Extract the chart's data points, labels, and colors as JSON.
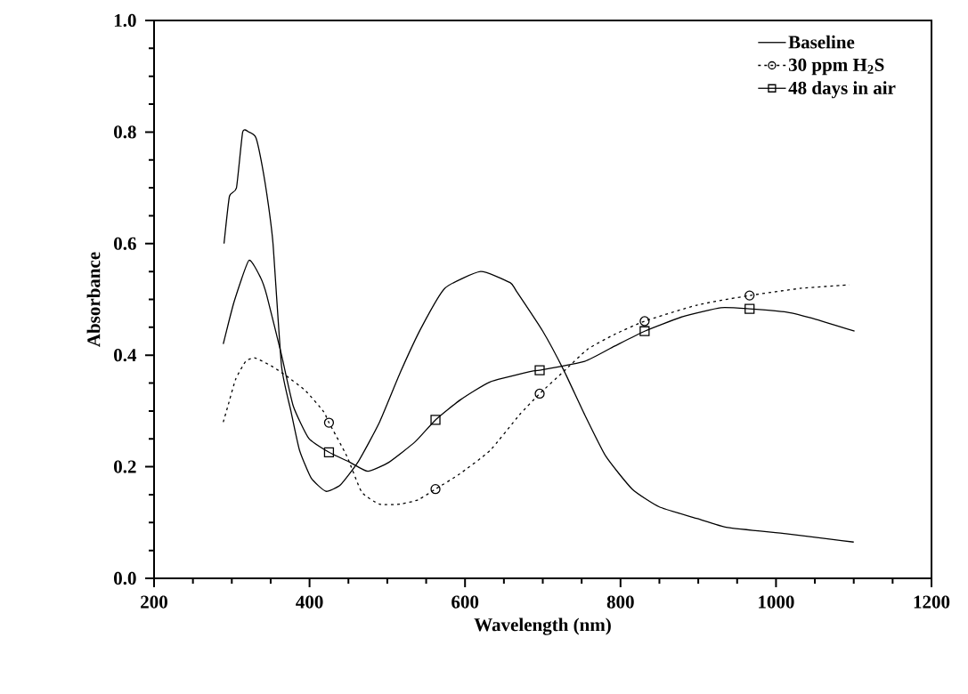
{
  "chart_data": {
    "type": "line",
    "xlabel": "Wavelength  (nm)",
    "ylabel": "Absorbance",
    "xlim": [
      200,
      1200
    ],
    "ylim": [
      0,
      1
    ],
    "xticks": [
      200,
      {
        "value": 250,
        "label": null
      },
      {
        "value": 300,
        "label": null
      },
      {
        "value": 350,
        "label": null
      },
      400,
      {
        "value": 450,
        "label": null
      },
      {
        "value": 500,
        "label": null
      },
      {
        "value": 550,
        "label": null
      },
      600,
      {
        "value": 650,
        "label": null
      },
      {
        "value": 700,
        "label": null
      },
      {
        "value": 750,
        "label": null
      },
      800,
      {
        "value": 850,
        "label": null
      },
      {
        "value": 900,
        "label": null
      },
      {
        "value": 950,
        "label": null
      },
      1000,
      {
        "value": 1050,
        "label": null
      },
      {
        "value": 1100,
        "label": null
      },
      {
        "value": 1150,
        "label": null
      },
      1200
    ],
    "yticks": [
      {
        "value": 0,
        "label": "0.0"
      },
      {
        "value": 0.05,
        "label": null
      },
      {
        "value": 0.1,
        "label": null
      },
      {
        "value": 0.15,
        "label": null
      },
      0.2,
      {
        "value": 0.25,
        "label": null
      },
      {
        "value": 0.3,
        "label": null
      },
      {
        "value": 0.35,
        "label": null
      },
      0.4,
      {
        "value": 0.45,
        "label": null
      },
      {
        "value": 0.5,
        "label": null
      },
      {
        "value": 0.55,
        "label": null
      },
      0.6,
      {
        "value": 0.65,
        "label": null
      },
      {
        "value": 0.7,
        "label": null
      },
      {
        "value": 0.75,
        "label": null
      },
      0.8,
      {
        "value": 0.85,
        "label": null
      },
      {
        "value": 0.9,
        "label": null
      },
      {
        "value": 0.95,
        "label": null
      },
      {
        "value": 1,
        "label": "1.0"
      }
    ],
    "grid": false,
    "legend": "top right",
    "series": [
      {
        "name": "Baseline",
        "color": "#000000",
        "line_style": "solid",
        "x": [
          290,
          297,
          306,
          314,
          322,
          331,
          339,
          347,
          353,
          364,
          376,
          387,
          402,
          421,
          440,
          463,
          490,
          517,
          544,
          574,
          620,
          658,
          666,
          700,
          727,
          754,
          781,
          815,
          850,
          899,
          938,
          1013,
          1071,
          1100
        ],
        "values": [
          0.6,
          0.685,
          0.7,
          0.8,
          0.8,
          0.79,
          0.74,
          0.67,
          0.6,
          0.38,
          0.3,
          0.23,
          0.18,
          0.156,
          0.168,
          0.21,
          0.28,
          0.37,
          0.45,
          0.52,
          0.55,
          0.53,
          0.515,
          0.443,
          0.373,
          0.293,
          0.219,
          0.16,
          0.128,
          0.107,
          0.091,
          0.08,
          0.07,
          0.065
        ]
      },
      {
        "name": "30 ppm H$_{2}$S",
        "color": "#000000",
        "line_style": "dashed",
        "x": [
          289,
          295,
          305,
          318,
          330,
          353,
          370,
          395,
          418,
          425,
          448,
          467,
          490,
          517,
          540,
          562,
          593,
          632,
          670,
          696,
          727,
          758,
          792,
          831,
          899,
          966,
          1033,
          1094
        ],
        "values": [
          0.28,
          0.309,
          0.357,
          0.389,
          0.395,
          0.379,
          0.363,
          0.336,
          0.299,
          0.279,
          0.219,
          0.155,
          0.133,
          0.133,
          0.141,
          0.16,
          0.187,
          0.229,
          0.293,
          0.331,
          0.371,
          0.411,
          0.437,
          0.461,
          0.49,
          0.507,
          0.52,
          0.526
        ]
      },
      {
        "type": "scatter",
        "color": "#000000",
        "marker": "circle",
        "x": [
          425,
          562,
          696,
          831,
          966
        ],
        "values": [
          0.279,
          0.16,
          0.331,
          0.461,
          0.507
        ]
      },
      {
        "name": "48 days in air",
        "color": "#000000",
        "line_style": "solid",
        "x": [
          289,
          303,
          322,
          337,
          345,
          364,
          379,
          399,
          425,
          452,
          475,
          502,
          536,
          562,
          594,
          632,
          685,
          696,
          754,
          792,
          831,
          880,
          929,
          966,
          1014,
          1052,
          1101
        ],
        "values": [
          0.42,
          0.496,
          0.57,
          0.539,
          0.507,
          0.4,
          0.309,
          0.251,
          0.226,
          0.208,
          0.192,
          0.208,
          0.245,
          0.284,
          0.32,
          0.352,
          0.371,
          0.373,
          0.389,
          0.416,
          0.443,
          0.469,
          0.485,
          0.483,
          0.477,
          0.464,
          0.443
        ]
      },
      {
        "type": "scatter",
        "color": "#000000",
        "marker": "square",
        "x": [
          425,
          562,
          696,
          831,
          966
        ],
        "values": [
          0.226,
          0.284,
          0.373,
          0.443,
          0.483
        ]
      }
    ]
  }
}
